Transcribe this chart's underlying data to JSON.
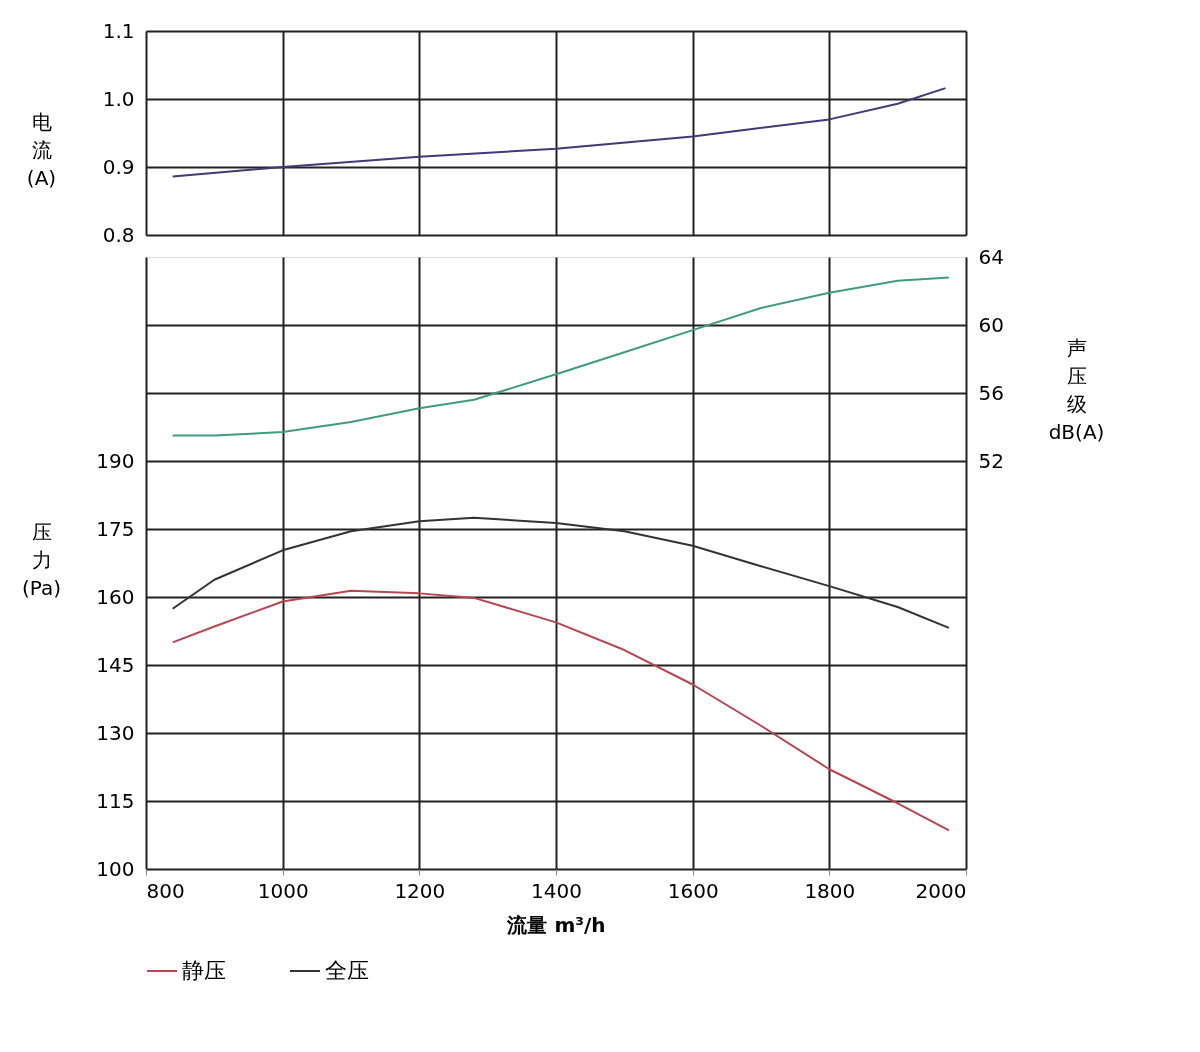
{
  "chart_data": [
    {
      "type": "line",
      "ylabel": "电流(A)",
      "x": [
        839,
        1000,
        1200,
        1400,
        1600,
        1800,
        1900,
        1970
      ],
      "xlim": [
        800,
        2000
      ],
      "xticks": [
        800,
        1000,
        1200,
        1400,
        1600,
        1800,
        2000
      ],
      "ylim": [
        0.8,
        1.1
      ],
      "yticks": [
        0.8,
        0.9,
        {
          "value": 1.0,
          "label": "1.0"
        },
        1.1
      ],
      "tick_labels": "y",
      "grid": true,
      "marker": "none",
      "line_style": "solid",
      "series": [
        {
          "color": "#3d3b78",
          "values": [
            0.886,
            0.9,
            0.915,
            0.927,
            0.945,
            0.97,
            0.993,
            1.016
          ]
        }
      ]
    },
    {
      "type": "line",
      "ylabel": "压力(Pa)",
      "y2label": "声压级dB(A)",
      "xlabel": "流量 m³/h",
      "x": [
        839,
        900,
        1000,
        1100,
        1200,
        1280,
        1400,
        1500,
        1600,
        1700,
        1800,
        1900,
        1975
      ],
      "xlim": [
        800,
        2000
      ],
      "xticks": [
        800,
        1000,
        1200,
        1400,
        1600,
        1800,
        2000
      ],
      "ylim": [
        100,
        235
      ],
      "yticks": [
        100,
        115,
        130,
        145,
        160,
        175,
        190,
        {
          "value": 205,
          "label": null
        },
        {
          "value": 220,
          "label": null
        }
      ],
      "y2lim": [
        28,
        64
      ],
      "y2ticks": [
        52,
        56,
        60,
        64
      ],
      "grid": true,
      "legend": "bottom",
      "marker": "none",
      "line_style": "solid",
      "series": [
        {
          "name": "静压",
          "color": "#b8454f",
          "values": [
            150,
            153.5,
            159,
            161.4,
            160.8,
            159.8,
            154.4,
            148.3,
            140.7,
            131.6,
            122,
            114.5,
            108.5
          ]
        },
        {
          "name": "全压",
          "color": "#333333",
          "values": [
            157.4,
            163.8,
            170.3,
            174.5,
            176.7,
            177.5,
            176.3,
            174.5,
            171.3,
            166.8,
            162.4,
            157.8,
            153.2
          ]
        },
        {
          "axis": "y2",
          "color": "#3f9c7c",
          "values": [
            53.5,
            53.5,
            53.7,
            54.3,
            55.1,
            55.6,
            57.1,
            58.4,
            59.7,
            61.0,
            61.9,
            62.6,
            62.8
          ]
        }
      ]
    }
  ]
}
